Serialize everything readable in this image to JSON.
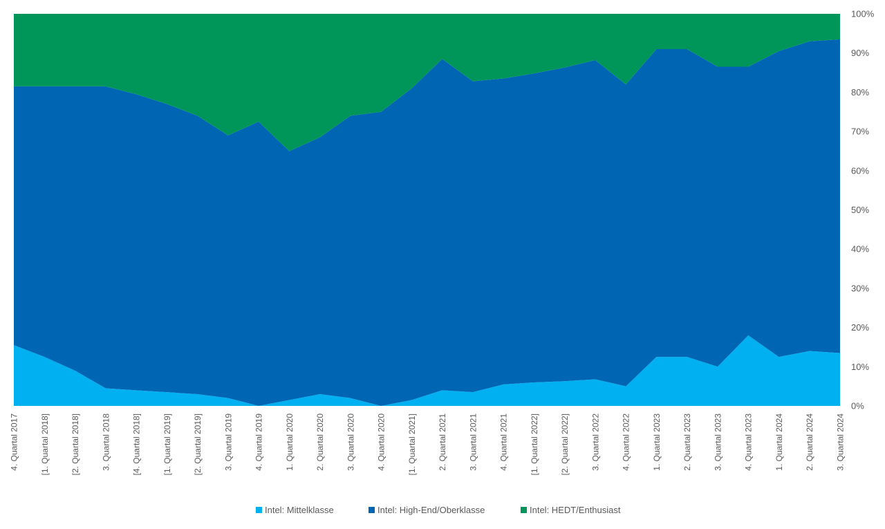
{
  "chart_data": {
    "type": "area",
    "stacked": "percent",
    "title": "",
    "xlabel": "",
    "ylabel": "",
    "ylim": [
      0,
      100
    ],
    "y_ticks": [
      "0%",
      "10%",
      "20%",
      "30%",
      "40%",
      "50%",
      "60%",
      "70%",
      "80%",
      "90%",
      "100%"
    ],
    "y_axis_side": "right",
    "grid": false,
    "legend": "bottom",
    "categories": [
      "4. Quartal 2017",
      "[1. Quartal 2018]",
      "[2. Quartal 2018]",
      "3. Quartal 2018",
      "[4. Quartal 2018]",
      "[1. Quartal 2019]",
      "[2. Quartal 2019]",
      "3. Quartal 2019",
      "4. Quartal 2019",
      "1. Quartal 2020",
      "2. Quartal 2020",
      "3. Quartal 2020",
      "4. Quartal 2020",
      "[1. Quartal 2021]",
      "2. Quartal 2021",
      "3. Quartal 2021",
      "4. Quartal 2021",
      "[1. Quartal 2022]",
      "[2. Quartal 2022]",
      "3. Quartal 2022",
      "4. Quartal 2022",
      "1. Quartal 2023",
      "2. Quartal 2023",
      "3. Quartal 2023",
      "4. Quartal 2023",
      "1. Quartal 2024",
      "2. Quartal 2024",
      "3. Quartal 2024"
    ],
    "series": [
      {
        "name": "Intel: Mittelklasse",
        "color": "#00b0f0",
        "values": [
          15.5,
          12.5,
          9,
          4.5,
          4,
          3.5,
          3,
          2,
          0,
          1.5,
          3,
          2,
          0,
          1.5,
          4,
          3.5,
          5.5,
          6,
          6.3,
          6.8,
          5,
          12.5,
          12.5,
          10,
          18,
          12.5,
          14,
          13.5
        ]
      },
      {
        "name": "Intel: High-End/Oberklasse",
        "color": "#0066b4",
        "values": [
          66,
          69,
          72.5,
          77,
          75.5,
          73.5,
          71,
          67,
          72.5,
          63.5,
          65.5,
          72,
          75,
          79.5,
          84.5,
          79.3,
          78,
          78.8,
          80,
          81.4,
          77,
          78.5,
          78.5,
          76.5,
          68.5,
          78,
          79,
          80
        ]
      },
      {
        "name": "Intel: HEDT/Enthusiast",
        "color": "#00965a",
        "values": [
          18.5,
          18.5,
          18.5,
          18.5,
          20.5,
          23,
          26,
          31,
          27.5,
          35,
          31.5,
          26,
          25,
          19,
          11.5,
          17.2,
          16.5,
          15.2,
          13.7,
          11.8,
          18,
          9,
          9,
          13.5,
          13.5,
          9.5,
          7,
          6.5
        ]
      }
    ]
  }
}
